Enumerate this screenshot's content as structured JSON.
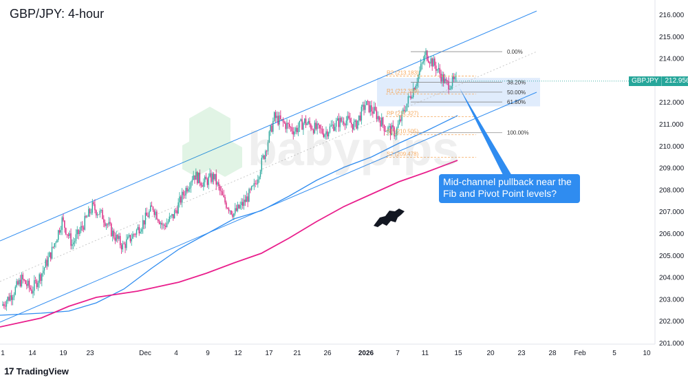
{
  "title": "GBP/JPY: 4-hour",
  "footer": {
    "brand": "TradingView"
  },
  "watermark": {
    "text": "babypips"
  },
  "callout": {
    "text": "Mid-channel pullback near the Fib and Pivot Point levels?"
  },
  "price_badge": {
    "symbol": "GBPJPY",
    "value": "212.956"
  },
  "colors": {
    "bull": "#26a69a",
    "bear": "#d81b7a",
    "channel": "#2f8cf0",
    "ma_fast": "#2f8cf0",
    "ma_slow": "#e91e8c",
    "pivot": "#f6a85b",
    "fib_box": "#dbe9fb"
  },
  "chart_data": {
    "type": "candlestick",
    "title": "GBP/JPY: 4-hour",
    "ylim": [
      200.6,
      216.6
    ],
    "y_ticks": [
      "201.000",
      "202.000",
      "203.000",
      "204.000",
      "205.000",
      "206.000",
      "207.000",
      "208.000",
      "209.000",
      "210.000",
      "211.000",
      "212.000",
      "213.000",
      "214.000",
      "215.000",
      "216.000"
    ],
    "x_ticks": [
      "1",
      "14",
      "19",
      "23",
      "Dec",
      "4",
      "9",
      "12",
      "17",
      "21",
      "26",
      "2026",
      "7",
      "11",
      "15",
      "20",
      "23",
      "28",
      "Feb",
      "5",
      "10"
    ],
    "last_price": 212.956,
    "fibonacci": [
      {
        "label": "0.00%",
        "price": 214.3
      },
      {
        "label": "38.20%",
        "price": 212.9
      },
      {
        "label": "50.00%",
        "price": 212.45
      },
      {
        "label": "61.80%",
        "price": 212.0
      },
      {
        "label": "100.00%",
        "price": 210.6
      }
    ],
    "pivots": [
      {
        "label": "R2 (213.183)",
        "price": 213.183
      },
      {
        "label": "R1 (212.359)",
        "price": 212.359
      },
      {
        "label": "PP (211.327)",
        "price": 211.327
      },
      {
        "label": "S1 (210.505)",
        "price": 210.505
      },
      {
        "label": "S2 (209.478)",
        "price": 209.478
      }
    ],
    "candle_path": [
      202.7,
      203.2,
      203.9,
      203.4,
      204.2,
      205.2,
      206.6,
      205.5,
      206.3,
      207.2,
      206.8,
      206.0,
      205.4,
      205.9,
      206.5,
      207.2,
      206.3,
      206.8,
      207.8,
      208.7,
      208.3,
      208.6,
      207.5,
      206.9,
      207.4,
      208.1,
      209.6,
      211.3,
      211.0,
      210.7,
      211.1,
      210.8,
      210.6,
      211.0,
      211.2,
      210.9,
      211.9,
      211.5,
      210.8,
      210.6,
      211.8,
      212.9,
      214.2,
      213.6,
      212.8,
      212.95
    ]
  }
}
